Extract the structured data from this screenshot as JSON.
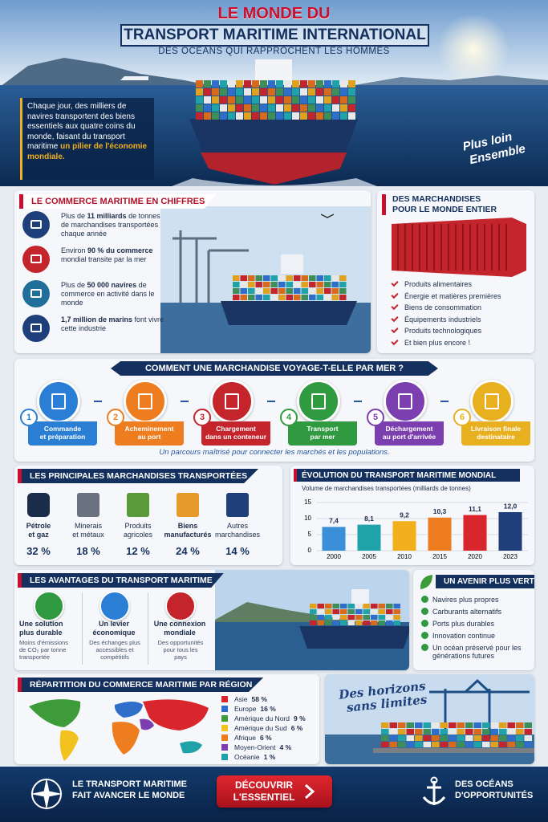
{
  "header": {
    "title_top": "LE MONDE DU",
    "title_main": "TRANSPORT MARITIME INTERNATIONAL",
    "subtitle": "DES OCÉANS QUI RAPPROCHENT LES HOMMES",
    "intro": "Chaque jour, des milliers de navires transportent des biens essentiels aux quatre coins du monde, faisant du transport maritime",
    "intro_highlight": "un pilier de l'économie mondiale.",
    "tagline": [
      "Plus loin",
      "Ensemble"
    ]
  },
  "figures": {
    "title": "LE COMMERCE MARITIME EN CHIFFRES",
    "items": [
      {
        "before": "Plus de ",
        "bold": "11 milliards",
        "after": " de tonnes de marchandises transportées chaque année"
      },
      {
        "before": "Environ ",
        "bold": "90 % du commerce",
        "after": " mondial transite par la mer"
      },
      {
        "before": "Plus de ",
        "bold": "50 000 navires",
        "after": " de commerce en activité dans le monde"
      },
      {
        "bold": "1,7 million de marins",
        "after": " font vivre cette industrie"
      }
    ]
  },
  "goods": {
    "title": [
      "DES MARCHANDISES",
      "POUR LE MONDE ENTIER"
    ],
    "items": [
      "Produits alimentaires",
      "Énergie et matières premières",
      "Biens de consommation",
      "Équipements industriels",
      "Produits technologiques",
      "Et bien plus encore !"
    ]
  },
  "process": {
    "title": "COMMENT UNE MARCHANDISE VOYAGE-T-ELLE PAR MER ?",
    "steps": [
      {
        "number": "1",
        "label": [
          "Commande",
          "et préparation"
        ]
      },
      {
        "number": "2",
        "label": [
          "Acheminement",
          "au port"
        ]
      },
      {
        "number": "3",
        "label": [
          "Chargement",
          "dans un conteneur"
        ]
      },
      {
        "number": "4",
        "label": [
          "Transport",
          "par mer"
        ]
      },
      {
        "number": "5",
        "label": [
          "Déchargement",
          "au port d'arrivée"
        ]
      },
      {
        "number": "6",
        "label": [
          "Livraison finale",
          "destinataire"
        ]
      }
    ],
    "caption": "Un parcours maîtrisé pour connecter les marchés et les populations."
  },
  "cargo": {
    "title": "LES PRINCIPALES MARCHANDISES TRANSPORTÉES",
    "items": [
      {
        "name": [
          "Pétrole",
          "et gaz"
        ],
        "share": "32 %"
      },
      {
        "name": [
          "Minerais",
          "et métaux"
        ],
        "share": "18 %"
      },
      {
        "name": [
          "Produits",
          "agricoles"
        ],
        "share": "12 %"
      },
      {
        "name": [
          "Biens",
          "manufacturés"
        ],
        "share": "24 %"
      },
      {
        "name": [
          "Autres",
          "marchandises"
        ],
        "share": "14 %"
      }
    ]
  },
  "chart_data": {
    "type": "bar",
    "title": "ÉVOLUTION DU TRANSPORT MARITIME MONDIAL",
    "subtitle": "Volume de marchandises transportées (milliards de tonnes)",
    "categories": [
      "2000",
      "2005",
      "2010",
      "2015",
      "2020",
      "2023"
    ],
    "values": [
      7.4,
      8.1,
      9.2,
      10.3,
      11.1,
      12.0
    ],
    "value_labels": [
      "7,4",
      "8,1",
      "9,2",
      "10,3",
      "11,1",
      "12,0"
    ],
    "colors": [
      "#3b8fd9",
      "#1fa3a8",
      "#f2b01e",
      "#ee7d1f",
      "#d8262c",
      "#1f3f7a"
    ],
    "ylim": [
      0,
      15
    ],
    "yticks": [
      0,
      5,
      10,
      15
    ],
    "grid": true
  },
  "advantages": {
    "title": "LES AVANTAGES DU TRANSPORT MARITIME",
    "items": [
      {
        "title": [
          "Une solution",
          "plus durable"
        ],
        "text": [
          "Moins d'émissions",
          "de CO₂ par tonne",
          "transportée"
        ]
      },
      {
        "title": [
          "Un levier",
          "économique"
        ],
        "text": [
          "Des échanges plus",
          "accessibles et",
          "compétitifs"
        ]
      },
      {
        "title": [
          "Une connexion",
          "mondiale"
        ],
        "text": [
          "Des opportunités",
          "pour tous les",
          "pays"
        ]
      }
    ]
  },
  "green": {
    "title": "UN AVENIR PLUS VERT",
    "items": [
      "Navires plus propres",
      "Carburants alternatifs",
      "Ports plus durables",
      "Innovation continue",
      "Un océan préservé pour les générations futures"
    ]
  },
  "regions": {
    "title": "RÉPARTITION DU COMMERCE MARITIME PAR RÉGION",
    "items": [
      {
        "name": "Asie",
        "share": "58 %",
        "color": "#d8262c"
      },
      {
        "name": "Europe",
        "share": "16 %",
        "color": "#2f6fc9"
      },
      {
        "name": "Amérique du Nord",
        "share": "9 %",
        "color": "#3e9b3a"
      },
      {
        "name": "Amérique du Sud",
        "share": "6 %",
        "color": "#f2c21e"
      },
      {
        "name": "Afrique",
        "share": "6 %",
        "color": "#ee7d1f"
      },
      {
        "name": "Moyen-Orient",
        "share": "4 %",
        "color": "#7b3fb0"
      },
      {
        "name": "Océanie",
        "share": "1 %",
        "color": "#1fa3a8"
      }
    ]
  },
  "horizon": [
    "Des horizons",
    "sans limites"
  ],
  "footer": {
    "left": [
      "LE TRANSPORT MARITIME",
      "FAIT AVANCER LE MONDE"
    ],
    "button": [
      "DÉCOUVRIR",
      "L'ESSENTIEL"
    ],
    "right": [
      "DES OCÉANS",
      "D'OPPORTUNITÉS"
    ]
  }
}
